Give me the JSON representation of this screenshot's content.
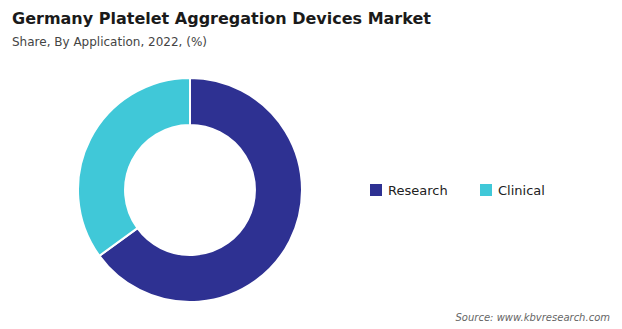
{
  "chart_data": {
    "type": "donut",
    "title": "Germany Platelet Aggregation Devices Market",
    "subtitle": "Share, By Application, 2022, (%)",
    "categories": [
      "Research",
      "Clinical"
    ],
    "values": [
      65,
      35
    ],
    "colors": [
      "#2e3192",
      "#40c8d8"
    ],
    "legend": "right",
    "annotations": [
      "Source: www.kbvresearch.com"
    ]
  }
}
